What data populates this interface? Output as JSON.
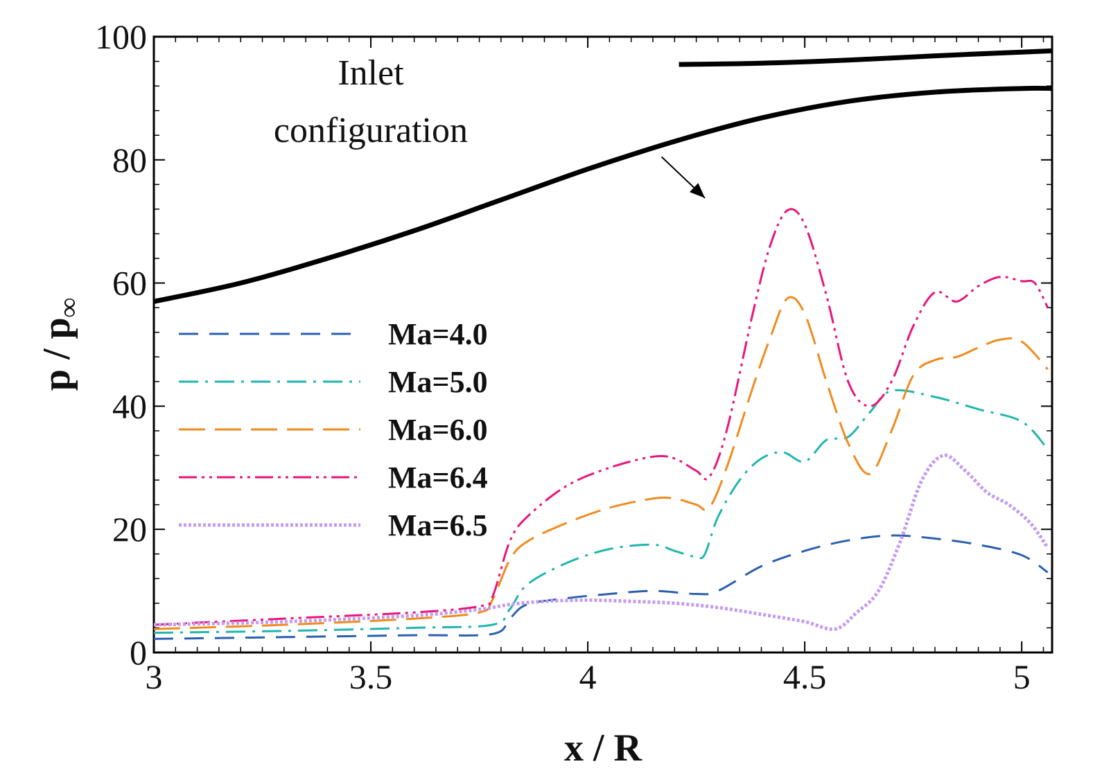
{
  "chart_data": {
    "type": "line",
    "title": "",
    "xlabel": "x / R",
    "ylabel_parts": {
      "p": "p",
      "slash": " / ",
      "pinf": "p",
      "sub": "∞"
    },
    "xlim": [
      3,
      5.07
    ],
    "ylim": [
      0,
      100
    ],
    "x_ticks": [
      3,
      3.5,
      4,
      4.5,
      5
    ],
    "x_tick_labels": [
      "3",
      "3.5",
      "4",
      "4.5",
      "5"
    ],
    "y_ticks": [
      0,
      20,
      40,
      60,
      80,
      100
    ],
    "y_tick_labels": [
      "0",
      "20",
      "40",
      "60",
      "80",
      "100"
    ],
    "legend_position": "left-middle",
    "series": [
      {
        "name": "Ma=4.0",
        "color": "#2a5fb0",
        "dash": "28,16",
        "width": 3,
        "x": [
          3,
          3.3,
          3.6,
          3.78,
          3.82,
          3.86,
          3.95,
          4.05,
          4.15,
          4.25,
          4.3,
          4.4,
          4.5,
          4.6,
          4.7,
          4.8,
          4.9,
          5.0,
          5.06
        ],
        "y": [
          2.2,
          2.5,
          2.8,
          3.0,
          5.5,
          7.8,
          8.8,
          9.5,
          10.0,
          9.5,
          10.0,
          14.0,
          16.5,
          18.2,
          19.0,
          18.5,
          17.5,
          15.8,
          13.0
        ]
      },
      {
        "name": "Ma=5.0",
        "color": "#1fb5b0",
        "dash": "28,10,4,10",
        "width": 3,
        "x": [
          3,
          3.3,
          3.6,
          3.78,
          3.82,
          3.86,
          3.95,
          4.05,
          4.15,
          4.2,
          4.25,
          4.27,
          4.3,
          4.35,
          4.4,
          4.45,
          4.5,
          4.55,
          4.6,
          4.65,
          4.7,
          4.8,
          4.9,
          5.0,
          5.06
        ],
        "y": [
          3.2,
          3.5,
          4.0,
          4.5,
          7.0,
          11.0,
          14.5,
          16.8,
          17.5,
          16.5,
          15.5,
          16.0,
          22.0,
          28.0,
          31.5,
          32.5,
          31.0,
          34.5,
          35.0,
          39.0,
          42.5,
          41.5,
          39.5,
          37.5,
          33.0
        ]
      },
      {
        "name": "Ma=6.0",
        "color": "#f08a1e",
        "dash": "38,14",
        "width": 3,
        "x": [
          3,
          3.3,
          3.6,
          3.75,
          3.78,
          3.82,
          3.86,
          3.95,
          4.05,
          4.15,
          4.2,
          4.25,
          4.28,
          4.32,
          4.38,
          4.42,
          4.46,
          4.5,
          4.55,
          4.6,
          4.65,
          4.7,
          4.75,
          4.8,
          4.85,
          4.9,
          4.95,
          5.0,
          5.06
        ],
        "y": [
          3.8,
          4.5,
          5.5,
          6.5,
          8.5,
          15.0,
          18.0,
          21.0,
          23.5,
          25.0,
          25.0,
          24.0,
          23.5,
          30.0,
          43.0,
          51.0,
          57.5,
          55.0,
          44.0,
          34.0,
          29.0,
          36.0,
          45.0,
          47.5,
          48.0,
          49.5,
          50.8,
          50.5,
          46.0
        ]
      },
      {
        "name": "Ma=6.4",
        "color": "#e8157a",
        "dash": "26,7,4,7,4,7",
        "width": 3,
        "x": [
          3,
          3.3,
          3.6,
          3.75,
          3.78,
          3.82,
          3.86,
          3.95,
          4.05,
          4.15,
          4.2,
          4.25,
          4.28,
          4.32,
          4.38,
          4.42,
          4.46,
          4.5,
          4.55,
          4.6,
          4.65,
          4.7,
          4.75,
          4.8,
          4.85,
          4.9,
          4.95,
          5.0,
          5.03,
          5.06
        ],
        "y": [
          4.5,
          5.5,
          6.5,
          7.5,
          9.0,
          18.0,
          22.0,
          27.0,
          30.0,
          31.8,
          31.5,
          29.5,
          28.5,
          36.0,
          55.0,
          66.0,
          71.8,
          69.5,
          58.0,
          44.0,
          40.0,
          44.0,
          53.0,
          58.5,
          57.0,
          59.5,
          61.0,
          60.3,
          60.0,
          56.0
        ]
      },
      {
        "name": "Ma=6.5",
        "color": "#c39bf2",
        "dash": "4,3",
        "width": 5,
        "x": [
          3,
          3.3,
          3.6,
          3.75,
          3.82,
          3.9,
          4.0,
          4.1,
          4.2,
          4.3,
          4.4,
          4.5,
          4.57,
          4.62,
          4.67,
          4.72,
          4.77,
          4.82,
          4.87,
          4.92,
          4.97,
          5.02,
          5.06
        ],
        "y": [
          4.5,
          5.0,
          6.0,
          7.0,
          7.8,
          8.3,
          8.5,
          8.3,
          8.0,
          7.3,
          6.2,
          5.0,
          3.8,
          6.5,
          10.0,
          18.0,
          28.0,
          32.0,
          29.5,
          26.0,
          24.0,
          21.0,
          17.0
        ]
      }
    ],
    "annotations": {
      "inlet_label_line1": "Inlet",
      "inlet_label_line2": "configuration",
      "inlet_outer_curve": {
        "x": [
          3,
          3.2,
          3.4,
          3.6,
          3.8,
          4.0,
          4.2,
          4.4,
          4.6,
          4.8,
          5.0,
          5.07
        ],
        "y": [
          57.0,
          60.0,
          64.0,
          68.5,
          73.5,
          78.5,
          83.0,
          86.8,
          89.5,
          91.0,
          91.6,
          91.6
        ]
      },
      "inlet_inner_curve": {
        "x": [
          4.21,
          4.4,
          4.6,
          4.8,
          5.0,
          5.07
        ],
        "y": [
          95.5,
          95.7,
          96.2,
          96.9,
          97.5,
          97.7
        ]
      },
      "arrow_from": [
        4.17,
        80.5
      ],
      "arrow_to": [
        4.27,
        73.8
      ]
    }
  }
}
